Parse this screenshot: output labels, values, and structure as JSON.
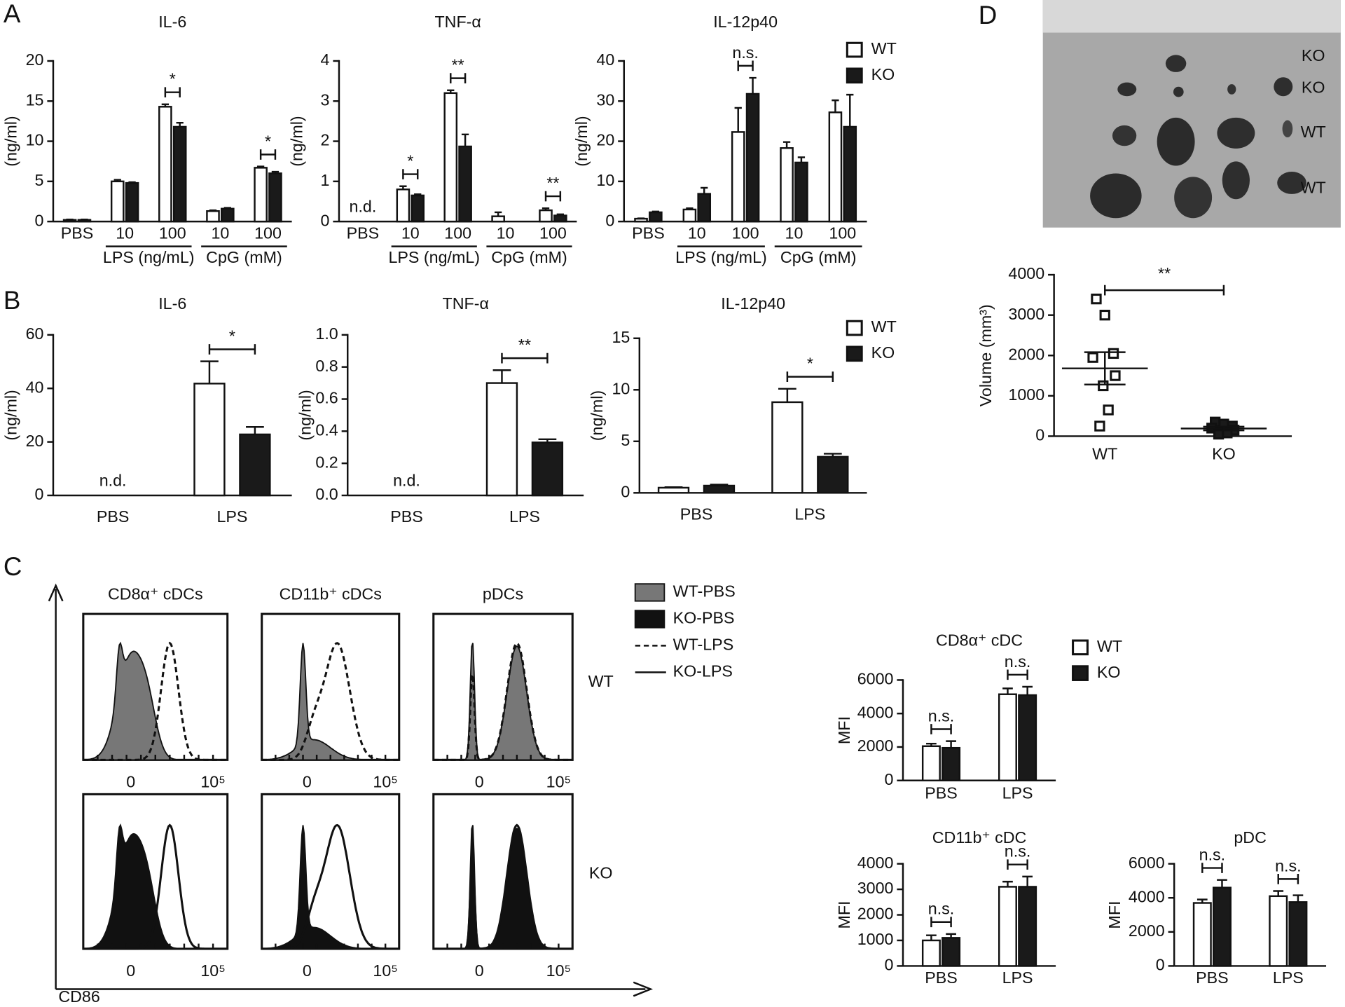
{
  "panel_labels": [
    "A",
    "B",
    "C",
    "D"
  ],
  "chart_data": [
    {
      "type": "bar",
      "title": "IL-6",
      "y_label": "(ng/ml)",
      "categories": [
        "PBS",
        "10",
        "100",
        "10",
        "100"
      ],
      "groups": [
        {
          "label": "LPS (ng/mL)",
          "categories": [
            1,
            2
          ]
        },
        {
          "label": "CpG (mM)",
          "categories": [
            3,
            4
          ]
        }
      ],
      "series": [
        {
          "name": "WT",
          "color": "#ffffff",
          "values": [
            0.2,
            5,
            14.3,
            1.3,
            6.7
          ],
          "errors": [
            0.05,
            0.2,
            0.3,
            0.1,
            0.15
          ]
        },
        {
          "name": "KO",
          "color": "#1a1a1a",
          "values": [
            0.2,
            4.8,
            11.8,
            1.6,
            6.0
          ],
          "errors": [
            0.05,
            0.1,
            0.5,
            0.1,
            0.2
          ]
        }
      ],
      "ylim": [
        0,
        20
      ],
      "yticks": [
        0,
        5,
        10,
        15,
        20
      ],
      "significance": [
        {
          "category": 2,
          "label": "*"
        },
        {
          "category": 4,
          "label": "*"
        }
      ]
    },
    {
      "type": "bar",
      "title": "TNF-α",
      "y_label": "(ng/ml)",
      "categories": [
        "PBS",
        "10",
        "100",
        "10",
        "100"
      ],
      "groups": [
        {
          "label": "LPS (ng/mL)",
          "categories": [
            1,
            2
          ]
        },
        {
          "label": "CpG (mM)",
          "categories": [
            3,
            4
          ]
        }
      ],
      "series": [
        {
          "name": "WT",
          "color": "#ffffff",
          "values": [
            null,
            0.8,
            3.2,
            0.13,
            0.28
          ],
          "errors": [
            null,
            0.08,
            0.07,
            0.1,
            0.05
          ]
        },
        {
          "name": "KO",
          "color": "#1a1a1a",
          "values": [
            null,
            0.65,
            1.87,
            null,
            0.15
          ],
          "errors": [
            null,
            0.03,
            0.3,
            null,
            0.03
          ]
        }
      ],
      "ylim": [
        0,
        4
      ],
      "yticks": [
        0,
        1,
        2,
        3,
        4
      ],
      "not_detected": [
        {
          "category": 0,
          "label": "n.d."
        }
      ],
      "significance": [
        {
          "category": 1,
          "label": "*"
        },
        {
          "category": 2,
          "label": "**"
        },
        {
          "category": 4,
          "label": "**"
        }
      ]
    },
    {
      "type": "bar",
      "title": "IL-12p40",
      "y_label": "(ng/ml)",
      "categories": [
        "PBS",
        "10",
        "100",
        "10",
        "100"
      ],
      "groups": [
        {
          "label": "LPS (ng/mL)",
          "categories": [
            1,
            2
          ]
        },
        {
          "label": "CpG (mM)",
          "categories": [
            3,
            4
          ]
        }
      ],
      "series": [
        {
          "name": "WT",
          "color": "#ffffff",
          "values": [
            0.7,
            3,
            22.3,
            18.3,
            27.2
          ],
          "errors": [
            0.1,
            0.3,
            6,
            1.5,
            3
          ]
        },
        {
          "name": "KO",
          "color": "#1a1a1a",
          "values": [
            2.3,
            6.9,
            31.8,
            14.7,
            23.6
          ],
          "errors": [
            0.2,
            1.5,
            4,
            1.3,
            8
          ]
        }
      ],
      "ylim": [
        0,
        40
      ],
      "yticks": [
        0,
        10,
        20,
        30,
        40
      ],
      "legend": "right",
      "significance": [
        {
          "category": 2,
          "label": "n.s."
        }
      ]
    },
    {
      "type": "bar",
      "title": "IL-6",
      "y_label": "(ng/ml)",
      "categories": [
        "PBS",
        "LPS"
      ],
      "series": [
        {
          "name": "WT",
          "color": "#ffffff",
          "values": [
            null,
            41.8
          ],
          "errors": [
            null,
            8.3
          ]
        },
        {
          "name": "KO",
          "color": "#1a1a1a",
          "values": [
            null,
            22.8
          ],
          "errors": [
            null,
            2.8
          ]
        }
      ],
      "ylim": [
        0,
        60
      ],
      "yticks": [
        0,
        20,
        40,
        60
      ],
      "not_detected": [
        {
          "category": 0,
          "label": "n.d."
        }
      ],
      "significance": [
        {
          "category": 1,
          "label": "*"
        }
      ]
    },
    {
      "type": "bar",
      "title": "TNF-α",
      "y_label": "(ng/ml)",
      "categories": [
        "PBS",
        "LPS"
      ],
      "series": [
        {
          "name": "WT",
          "color": "#ffffff",
          "values": [
            null,
            0.7
          ],
          "errors": [
            null,
            0.08
          ]
        },
        {
          "name": "KO",
          "color": "#1a1a1a",
          "values": [
            null,
            0.33
          ],
          "errors": [
            null,
            0.02
          ]
        }
      ],
      "ylim": [
        0,
        1
      ],
      "yticks": [
        {
          "value": 0,
          "label": "0.0"
        },
        0.2,
        0.4,
        0.6,
        0.8,
        {
          "value": 1,
          "label": "1.0"
        }
      ],
      "not_detected": [
        {
          "category": 0,
          "label": "n.d."
        }
      ],
      "significance": [
        {
          "category": 1,
          "label": "**"
        }
      ]
    },
    {
      "type": "bar",
      "title": "IL-12p40",
      "y_label": "(ng/ml)",
      "categories": [
        "PBS",
        "LPS"
      ],
      "series": [
        {
          "name": "WT",
          "color": "#ffffff",
          "values": [
            0.5,
            8.8
          ],
          "errors": [
            0.05,
            1.3
          ]
        },
        {
          "name": "KO",
          "color": "#1a1a1a",
          "values": [
            0.7,
            3.5
          ],
          "errors": [
            0.1,
            0.3
          ]
        }
      ],
      "ylim": [
        0,
        15
      ],
      "yticks": [
        0,
        5,
        10,
        15
      ],
      "legend": "right",
      "significance": [
        {
          "category": 1,
          "label": "*"
        }
      ]
    },
    {
      "type": "bar",
      "title": "CD8α⁺ cDC",
      "y_label": "MFI",
      "categories": [
        "PBS",
        "LPS"
      ],
      "series": [
        {
          "name": "WT",
          "color": "#ffffff",
          "values": [
            2050,
            5150
          ],
          "errors": [
            150,
            350
          ]
        },
        {
          "name": "KO",
          "color": "#1a1a1a",
          "values": [
            1950,
            5100
          ],
          "errors": [
            400,
            500
          ]
        }
      ],
      "ylim": [
        0,
        6000
      ],
      "yticks": [
        0,
        2000,
        4000,
        6000
      ],
      "legend": "right",
      "significance": [
        {
          "category": 0,
          "label": "n.s."
        },
        {
          "category": 1,
          "label": "n.s."
        }
      ]
    },
    {
      "type": "bar",
      "title": "CD11b⁺ cDC",
      "y_label": "MFI",
      "categories": [
        "PBS",
        "LPS"
      ],
      "series": [
        {
          "name": "WT",
          "color": "#ffffff",
          "values": [
            1000,
            3100
          ],
          "errors": [
            200,
            200
          ]
        },
        {
          "name": "KO",
          "color": "#1a1a1a",
          "values": [
            1100,
            3100
          ],
          "errors": [
            150,
            400
          ]
        }
      ],
      "ylim": [
        0,
        4000
      ],
      "yticks": [
        0,
        1000,
        2000,
        3000,
        4000
      ],
      "significance": [
        {
          "category": 0,
          "label": "n.s."
        },
        {
          "category": 1,
          "label": "n.s."
        }
      ]
    },
    {
      "type": "bar",
      "title": "pDC",
      "y_label": "MFI",
      "categories": [
        "PBS",
        "LPS"
      ],
      "series": [
        {
          "name": "WT",
          "color": "#ffffff",
          "values": [
            3700,
            4100
          ],
          "errors": [
            200,
            300
          ]
        },
        {
          "name": "KO",
          "color": "#1a1a1a",
          "values": [
            4600,
            3750
          ],
          "errors": [
            450,
            400
          ]
        }
      ],
      "ylim": [
        0,
        6000
      ],
      "yticks": [
        0,
        2000,
        4000,
        6000
      ],
      "significance": [
        {
          "category": 0,
          "label": "n.s."
        },
        {
          "category": 1,
          "label": "n.s."
        }
      ]
    },
    {
      "type": "scatter",
      "y_label": "Volume (mm³)",
      "categories": [
        "WT",
        "KO"
      ],
      "colors": [
        "#ffffff",
        "#1a1a1a"
      ],
      "values": [
        [
          3400,
          3000,
          2050,
          1950,
          1500,
          1250,
          650,
          250
        ],
        [
          350,
          300,
          250,
          200,
          150,
          120,
          80,
          50
        ]
      ],
      "mean": [
        1680,
        190
      ],
      "sem": [
        400,
        45
      ],
      "ylim": [
        0,
        4000
      ],
      "yticks": [
        0,
        1000,
        2000,
        3000,
        4000
      ],
      "significance": [
        {
          "categories": [
            0,
            1
          ],
          "label": "**"
        }
      ]
    }
  ],
  "histograms": {
    "titles": [
      "CD8α⁺ cDCs",
      "CD11b⁺ cDCs",
      "pDCs"
    ],
    "rows": [
      "WT",
      "KO"
    ],
    "legend": [
      "WT-PBS",
      "KO-PBS",
      "WT-LPS",
      "KO-LPS"
    ],
    "x_label": "CD86",
    "tick_labels": [
      "0",
      "10⁵"
    ]
  },
  "photo": {
    "labels": [
      "KO",
      "KO",
      "WT",
      "WT"
    ]
  }
}
